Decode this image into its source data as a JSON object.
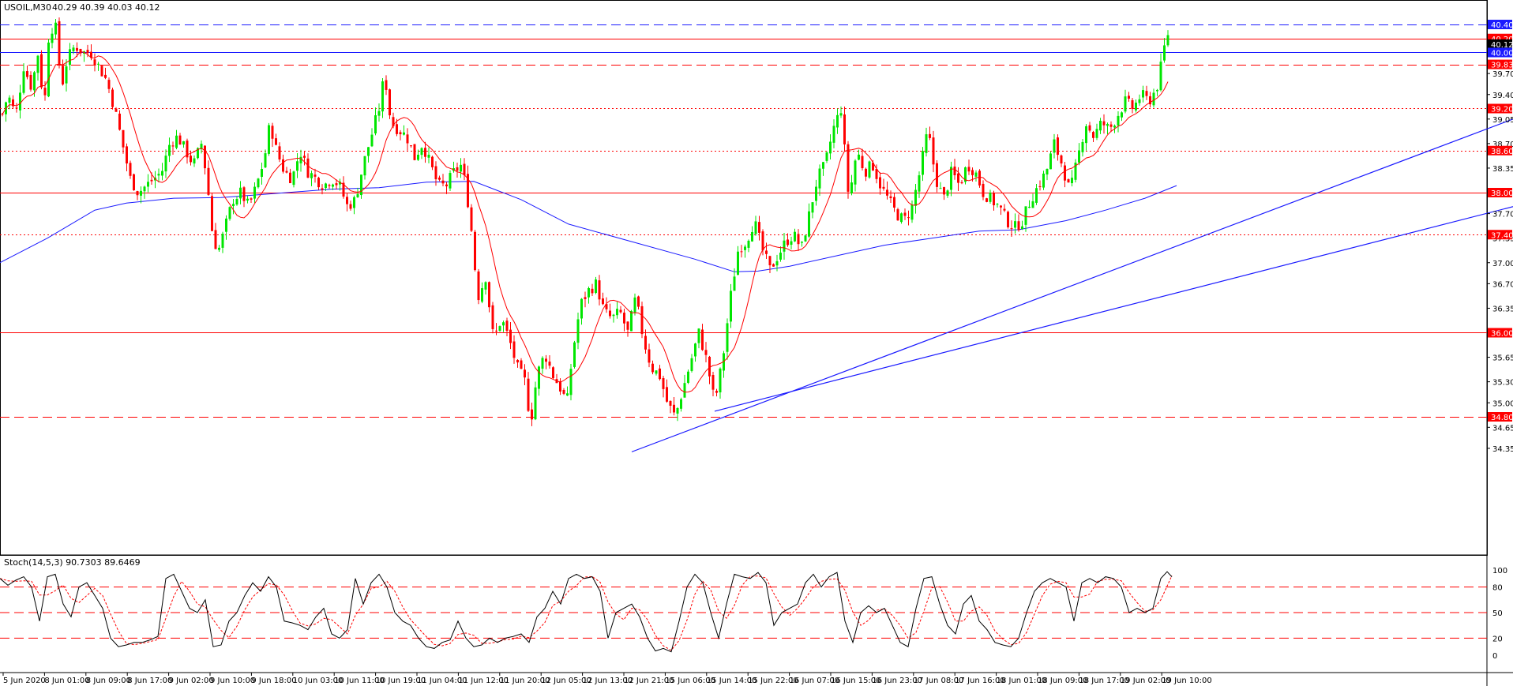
{
  "header": {
    "symbol": "USOIL,M30",
    "ohlc": "40.29 40.39 40.03 40.12"
  },
  "stoch_header": "Stoch(14,5,3) 90.7303 89.6469",
  "colors": {
    "bull": "#00e600",
    "bear": "#ff0000",
    "ma_fast": "#ff0000",
    "ma_slow": "#1a1aff",
    "trendline": "#1a1aff",
    "level_red": "#ff0000",
    "level_blue": "#1a1aff",
    "stoch_main": "#000000",
    "stoch_signal": "#ff0000"
  },
  "price_axis_ticks": [
    "39.70",
    "39.40",
    "39.05",
    "38.70",
    "38.35",
    "37.70",
    "37.35",
    "37.00",
    "36.70",
    "36.35",
    "35.65",
    "35.30",
    "35.00",
    "34.65",
    "34.35"
  ],
  "price_labels": [
    {
      "price": 40.4,
      "text": "40.40",
      "color": "#1a1aff"
    },
    {
      "price": 40.2,
      "text": "40.20",
      "color": "#ff0000"
    },
    {
      "price": 40.12,
      "text": "40.12",
      "color": "#000000"
    },
    {
      "price": 40.0,
      "text": "40.00",
      "color": "#1a1aff"
    },
    {
      "price": 39.83,
      "text": "39.83",
      "color": "#ff0000"
    },
    {
      "price": 39.2,
      "text": "39.20",
      "color": "#ff0000"
    },
    {
      "price": 38.6,
      "text": "38.60",
      "color": "#ff0000"
    },
    {
      "price": 38.0,
      "text": "38.00",
      "color": "#ff0000"
    },
    {
      "price": 37.4,
      "text": "37.40",
      "color": "#ff0000"
    },
    {
      "price": 36.0,
      "text": "36.00",
      "color": "#ff0000"
    },
    {
      "price": 34.8,
      "text": "34.80",
      "color": "#ff0000"
    }
  ],
  "levels": [
    {
      "price": 40.4,
      "style": "dash",
      "color": "#1a1aff"
    },
    {
      "price": 40.2,
      "style": "solid",
      "color": "#ff0000"
    },
    {
      "price": 40.0,
      "style": "solid",
      "color": "#1a1aff"
    },
    {
      "price": 39.83,
      "style": "dash",
      "color": "#ff0000"
    },
    {
      "price": 39.2,
      "style": "dot",
      "color": "#ff0000"
    },
    {
      "price": 38.6,
      "style": "dot",
      "color": "#ff0000"
    },
    {
      "price": 38.0,
      "style": "solid",
      "color": "#ff0000"
    },
    {
      "price": 37.4,
      "style": "dot",
      "color": "#ff0000"
    },
    {
      "price": 36.0,
      "style": "solid",
      "color": "#ff0000"
    },
    {
      "price": 34.8,
      "style": "dash",
      "color": "#ff0000"
    }
  ],
  "stoch_axis_ticks": [
    "100",
    "80",
    "50",
    "20",
    "0"
  ],
  "stoch_levels": [
    80,
    50,
    20
  ],
  "time_labels": [
    "5 Jun 2020",
    "8 Jun 01:00",
    "8 Jun 09:00",
    "8 Jun 17:00",
    "9 Jun 02:00",
    "9 Jun 10:00",
    "9 Jun 18:00",
    "10 Jun 03:00",
    "10 Jun 11:00",
    "10 Jun 19:00",
    "11 Jun 04:00",
    "11 Jun 12:00",
    "11 Jun 20:00",
    "12 Jun 05:00",
    "12 Jun 13:00",
    "12 Jun 21:00",
    "15 Jun 06:00",
    "15 Jun 14:00",
    "15 Jun 22:00",
    "16 Jun 07:00",
    "16 Jun 15:00",
    "16 Jun 23:00",
    "17 Jun 08:00",
    "17 Jun 16:00",
    "18 Jun 01:00",
    "18 Jun 09:00",
    "18 Jun 17:00",
    "19 Jun 02:00",
    "19 Jun 10:00"
  ],
  "chart_data": {
    "type": "candlestick",
    "symbol": "USOIL",
    "timeframe": "M30",
    "ylim": [
      34.3,
      40.55
    ],
    "price_path": [
      [
        0,
        39.0
      ],
      [
        10,
        39.4
      ],
      [
        20,
        39.1
      ],
      [
        30,
        39.8
      ],
      [
        40,
        39.5
      ],
      [
        50,
        40.1
      ],
      [
        55,
        39.0
      ],
      [
        62,
        40.3
      ],
      [
        70,
        40.4
      ],
      [
        78,
        39.5
      ],
      [
        85,
        39.9
      ],
      [
        95,
        40.1
      ],
      [
        105,
        40.0
      ],
      [
        115,
        40.0
      ],
      [
        125,
        39.8
      ],
      [
        135,
        39.6
      ],
      [
        145,
        39.2
      ],
      [
        155,
        38.7
      ],
      [
        165,
        38.2
      ],
      [
        175,
        38.0
      ],
      [
        185,
        38.1
      ],
      [
        195,
        38.2
      ],
      [
        205,
        38.3
      ],
      [
        215,
        38.7
      ],
      [
        225,
        38.8
      ],
      [
        235,
        38.6
      ],
      [
        245,
        38.4
      ],
      [
        255,
        38.7
      ],
      [
        262,
        38.2
      ],
      [
        270,
        37.3
      ],
      [
        278,
        37.2
      ],
      [
        285,
        37.5
      ],
      [
        295,
        37.9
      ],
      [
        305,
        38.0
      ],
      [
        315,
        37.8
      ],
      [
        325,
        38.1
      ],
      [
        335,
        38.5
      ],
      [
        342,
        39.0
      ],
      [
        350,
        38.6
      ],
      [
        360,
        38.3
      ],
      [
        370,
        38.2
      ],
      [
        380,
        38.6
      ],
      [
        390,
        38.3
      ],
      [
        400,
        38.2
      ],
      [
        410,
        38.1
      ],
      [
        420,
        38.2
      ],
      [
        430,
        38.1
      ],
      [
        440,
        37.8
      ],
      [
        450,
        37.9
      ],
      [
        460,
        38.4
      ],
      [
        470,
        38.8
      ],
      [
        480,
        39.2
      ],
      [
        487,
        39.7
      ],
      [
        495,
        39.0
      ],
      [
        505,
        38.9
      ],
      [
        515,
        38.8
      ],
      [
        525,
        38.5
      ],
      [
        535,
        38.7
      ],
      [
        545,
        38.4
      ],
      [
        555,
        38.1
      ],
      [
        565,
        38.1
      ],
      [
        575,
        38.3
      ],
      [
        585,
        38.4
      ],
      [
        595,
        37.7
      ],
      [
        605,
        36.5
      ],
      [
        615,
        36.8
      ],
      [
        625,
        35.9
      ],
      [
        635,
        36.2
      ],
      [
        645,
        35.9
      ],
      [
        655,
        35.5
      ],
      [
        665,
        35.3
      ],
      [
        672,
        34.7
      ],
      [
        680,
        35.4
      ],
      [
        690,
        35.7
      ],
      [
        700,
        35.4
      ],
      [
        710,
        35.2
      ],
      [
        718,
        35.0
      ],
      [
        725,
        35.7
      ],
      [
        735,
        36.4
      ],
      [
        745,
        36.6
      ],
      [
        755,
        36.7
      ],
      [
        765,
        36.3
      ],
      [
        775,
        36.2
      ],
      [
        785,
        36.3
      ],
      [
        795,
        36.0
      ],
      [
        805,
        36.5
      ],
      [
        815,
        35.9
      ],
      [
        825,
        35.5
      ],
      [
        835,
        35.4
      ],
      [
        845,
        35.0
      ],
      [
        855,
        34.8
      ],
      [
        865,
        35.2
      ],
      [
        875,
        35.6
      ],
      [
        885,
        36.0
      ],
      [
        895,
        35.6
      ],
      [
        905,
        35.0
      ],
      [
        915,
        35.6
      ],
      [
        925,
        36.5
      ],
      [
        935,
        37.2
      ],
      [
        945,
        37.3
      ],
      [
        955,
        37.6
      ],
      [
        965,
        37.2
      ],
      [
        975,
        36.9
      ],
      [
        985,
        37.1
      ],
      [
        995,
        37.3
      ],
      [
        1005,
        37.4
      ],
      [
        1015,
        37.2
      ],
      [
        1025,
        37.7
      ],
      [
        1035,
        38.2
      ],
      [
        1045,
        38.4
      ],
      [
        1055,
        38.9
      ],
      [
        1065,
        39.2
      ],
      [
        1075,
        37.9
      ],
      [
        1085,
        38.6
      ],
      [
        1095,
        38.3
      ],
      [
        1105,
        38.4
      ],
      [
        1115,
        38.1
      ],
      [
        1125,
        37.9
      ],
      [
        1135,
        37.7
      ],
      [
        1145,
        37.6
      ],
      [
        1155,
        37.8
      ],
      [
        1165,
        38.3
      ],
      [
        1175,
        38.9
      ],
      [
        1185,
        38.2
      ],
      [
        1195,
        37.9
      ],
      [
        1205,
        38.3
      ],
      [
        1215,
        38.1
      ],
      [
        1225,
        38.4
      ],
      [
        1235,
        38.3
      ],
      [
        1245,
        38.0
      ],
      [
        1255,
        37.9
      ],
      [
        1265,
        37.8
      ],
      [
        1275,
        37.6
      ],
      [
        1285,
        37.5
      ],
      [
        1295,
        37.6
      ],
      [
        1305,
        37.9
      ],
      [
        1315,
        38.1
      ],
      [
        1325,
        38.3
      ],
      [
        1335,
        38.7
      ],
      [
        1345,
        38.4
      ],
      [
        1355,
        38.0
      ],
      [
        1365,
        38.5
      ],
      [
        1375,
        39.0
      ],
      [
        1385,
        38.8
      ],
      [
        1395,
        39.0
      ],
      [
        1405,
        38.9
      ],
      [
        1415,
        39.1
      ],
      [
        1425,
        39.3
      ],
      [
        1435,
        39.2
      ],
      [
        1445,
        39.4
      ],
      [
        1455,
        39.3
      ],
      [
        1465,
        39.5
      ],
      [
        1472,
        39.9
      ],
      [
        1478,
        40.3
      ],
      [
        1483,
        40.15
      ]
    ],
    "stoch_path": [
      [
        0,
        90
      ],
      [
        10,
        82
      ],
      [
        20,
        88
      ],
      [
        30,
        92
      ],
      [
        40,
        80
      ],
      [
        50,
        40
      ],
      [
        60,
        92
      ],
      [
        70,
        95
      ],
      [
        80,
        60
      ],
      [
        90,
        45
      ],
      [
        100,
        80
      ],
      [
        110,
        85
      ],
      [
        120,
        70
      ],
      [
        130,
        55
      ],
      [
        140,
        20
      ],
      [
        150,
        10
      ],
      [
        160,
        12
      ],
      [
        170,
        15
      ],
      [
        180,
        15
      ],
      [
        190,
        18
      ],
      [
        200,
        22
      ],
      [
        210,
        90
      ],
      [
        220,
        95
      ],
      [
        230,
        75
      ],
      [
        240,
        55
      ],
      [
        250,
        50
      ],
      [
        260,
        65
      ],
      [
        270,
        10
      ],
      [
        280,
        12
      ],
      [
        290,
        40
      ],
      [
        300,
        50
      ],
      [
        310,
        70
      ],
      [
        320,
        85
      ],
      [
        330,
        75
      ],
      [
        340,
        92
      ],
      [
        350,
        80
      ],
      [
        360,
        40
      ],
      [
        370,
        38
      ],
      [
        380,
        35
      ],
      [
        390,
        30
      ],
      [
        400,
        45
      ],
      [
        410,
        55
      ],
      [
        420,
        25
      ],
      [
        430,
        20
      ],
      [
        440,
        30
      ],
      [
        450,
        90
      ],
      [
        460,
        60
      ],
      [
        470,
        85
      ],
      [
        480,
        95
      ],
      [
        490,
        80
      ],
      [
        500,
        50
      ],
      [
        510,
        40
      ],
      [
        520,
        35
      ],
      [
        530,
        20
      ],
      [
        540,
        10
      ],
      [
        550,
        8
      ],
      [
        560,
        15
      ],
      [
        570,
        18
      ],
      [
        580,
        40
      ],
      [
        590,
        20
      ],
      [
        600,
        10
      ],
      [
        610,
        12
      ],
      [
        620,
        20
      ],
      [
        630,
        15
      ],
      [
        640,
        20
      ],
      [
        650,
        22
      ],
      [
        660,
        25
      ],
      [
        670,
        15
      ],
      [
        680,
        45
      ],
      [
        690,
        55
      ],
      [
        700,
        75
      ],
      [
        710,
        60
      ],
      [
        720,
        90
      ],
      [
        730,
        95
      ],
      [
        740,
        90
      ],
      [
        750,
        92
      ],
      [
        760,
        75
      ],
      [
        770,
        20
      ],
      [
        780,
        50
      ],
      [
        790,
        55
      ],
      [
        800,
        60
      ],
      [
        810,
        45
      ],
      [
        820,
        20
      ],
      [
        830,
        5
      ],
      [
        840,
        8
      ],
      [
        850,
        4
      ],
      [
        860,
        40
      ],
      [
        870,
        80
      ],
      [
        880,
        95
      ],
      [
        890,
        85
      ],
      [
        900,
        50
      ],
      [
        910,
        20
      ],
      [
        920,
        60
      ],
      [
        930,
        95
      ],
      [
        940,
        92
      ],
      [
        950,
        90
      ],
      [
        960,
        97
      ],
      [
        970,
        85
      ],
      [
        980,
        35
      ],
      [
        990,
        50
      ],
      [
        1000,
        55
      ],
      [
        1010,
        60
      ],
      [
        1020,
        85
      ],
      [
        1030,
        95
      ],
      [
        1040,
        80
      ],
      [
        1050,
        92
      ],
      [
        1060,
        97
      ],
      [
        1070,
        40
      ],
      [
        1080,
        15
      ],
      [
        1090,
        50
      ],
      [
        1100,
        58
      ],
      [
        1110,
        50
      ],
      [
        1120,
        55
      ],
      [
        1130,
        35
      ],
      [
        1140,
        15
      ],
      [
        1150,
        10
      ],
      [
        1160,
        55
      ],
      [
        1170,
        90
      ],
      [
        1180,
        92
      ],
      [
        1190,
        60
      ],
      [
        1200,
        35
      ],
      [
        1210,
        25
      ],
      [
        1220,
        60
      ],
      [
        1230,
        70
      ],
      [
        1240,
        40
      ],
      [
        1250,
        30
      ],
      [
        1260,
        15
      ],
      [
        1270,
        12
      ],
      [
        1280,
        10
      ],
      [
        1290,
        20
      ],
      [
        1300,
        50
      ],
      [
        1310,
        75
      ],
      [
        1320,
        85
      ],
      [
        1330,
        90
      ],
      [
        1340,
        85
      ],
      [
        1350,
        80
      ],
      [
        1360,
        40
      ],
      [
        1370,
        85
      ],
      [
        1380,
        90
      ],
      [
        1390,
        85
      ],
      [
        1400,
        92
      ],
      [
        1410,
        90
      ],
      [
        1420,
        80
      ],
      [
        1430,
        50
      ],
      [
        1440,
        55
      ],
      [
        1450,
        50
      ],
      [
        1460,
        55
      ],
      [
        1470,
        90
      ],
      [
        1478,
        98
      ],
      [
        1484,
        92
      ]
    ],
    "ma_fast_period_note": "",
    "trendlines": [
      {
        "p1": [
          800,
          34.3
        ],
        "p2": [
          1916,
          39.05
        ]
      },
      {
        "p1": [
          905,
          34.88
        ],
        "p2": [
          1916,
          37.8
        ]
      }
    ]
  }
}
